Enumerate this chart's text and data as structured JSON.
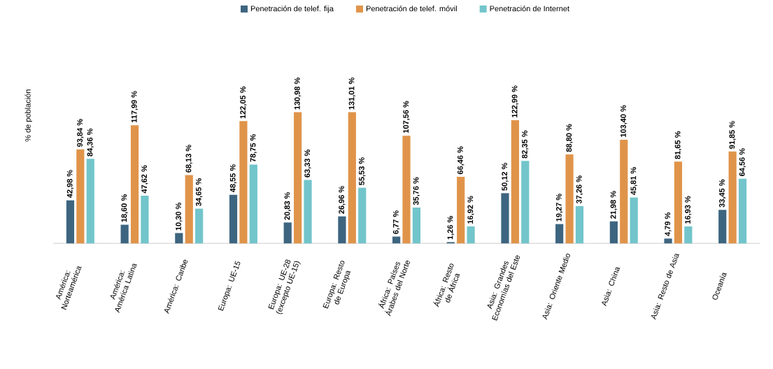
{
  "chart_data": {
    "type": "bar",
    "ylabel": "% de población",
    "legend": "top",
    "categories": [
      "América: Norteamérica",
      "América: América Latina",
      "América: Caribe",
      "Europa: UE-15",
      "Europa: UE-28 (excepto UE-15)",
      "Europa: Resto de Europa",
      "África: Países Árabes del Norte",
      "África: Resto de África",
      "Asia: Grandes Economías del Este",
      "Asia: Oriente Medio",
      "Asia: China",
      "Asia: Resto de Asia",
      "Oceanía"
    ],
    "series": [
      {
        "name": "Penetración de telef. fija",
        "color": "#3d6580",
        "values": [
          42.98,
          18.6,
          10.3,
          48.55,
          20.83,
          26.96,
          6.77,
          1.26,
          50.12,
          19.27,
          21.98,
          4.79,
          33.45
        ],
        "value_labels": [
          "42,98 %",
          "18,60 %",
          "10,30 %",
          "48,55 %",
          "20,83 %",
          "26,96 %",
          "6,77 %",
          "1,26 %",
          "50,12 %",
          "19,27 %",
          "21,98 %",
          "4,79 %",
          "33,45 %"
        ]
      },
      {
        "name": "Penetración de telef. móvil",
        "color": "#e0944a",
        "values": [
          93.84,
          117.99,
          68.13,
          122.05,
          130.98,
          131.01,
          107.56,
          66.46,
          122.99,
          88.8,
          103.4,
          81.65,
          91.85
        ],
        "value_labels": [
          "93,84 %",
          "117,99 %",
          "68,13 %",
          "122,05 %",
          "130,98 %",
          "131,01 %",
          "107,56 %",
          "66,46 %",
          "122,99 %",
          "88,80 %",
          "103,40 %",
          "81,65 %",
          "91,85 %"
        ]
      },
      {
        "name": "Penetración de Internet",
        "color": "#72c5cb",
        "values": [
          84.36,
          47.62,
          34.65,
          78.75,
          63.33,
          55.53,
          35.76,
          16.92,
          82.35,
          37.26,
          45.81,
          16.93,
          64.56
        ],
        "value_labels": [
          "84,36 %",
          "47,62 %",
          "34,65 %",
          "78,75 %",
          "63,33 %",
          "55,53 %",
          "35,76 %",
          "16,92 %",
          "82,35 %",
          "37,26 %",
          "45,81 %",
          "16,93 %",
          "64,56 %"
        ]
      }
    ]
  }
}
